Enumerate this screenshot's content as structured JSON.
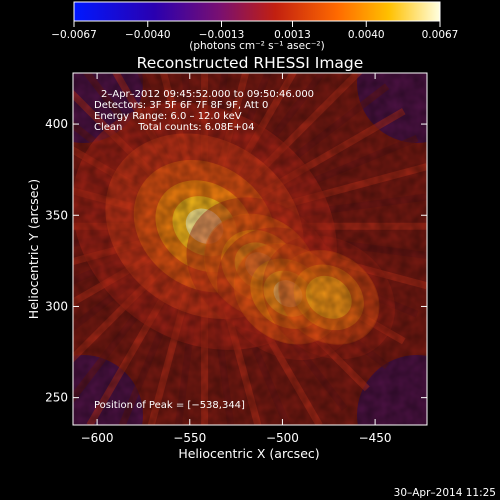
{
  "chart_data": {
    "type": "heatmap",
    "title": "Reconstructed RHESSI Image",
    "xlabel": "Heliocentric X (arcsec)",
    "ylabel": "Heliocentric Y (arcsec)",
    "xlim": [
      -613,
      -422
    ],
    "ylim": [
      235,
      428
    ],
    "x_ticks": [
      -600,
      -550,
      -500,
      -450
    ],
    "x_tick_labels": [
      "−600",
      "−550",
      "−500",
      "−450"
    ],
    "y_ticks": [
      250,
      300,
      350,
      400
    ],
    "y_tick_labels": [
      "250",
      "300",
      "350",
      "400"
    ],
    "colorbar": {
      "min": -0.0067,
      "max": 0.0067,
      "ticks": [
        -0.0067,
        -0.004,
        -0.0013,
        0.0013,
        0.004,
        0.0067
      ],
      "tick_labels": [
        "−0.0067",
        "−0.0040",
        "−0.0013",
        "0.0013",
        "0.0040",
        "0.0067"
      ],
      "unit_label": "(photons cm⁻² s⁻¹ asec⁻²)"
    },
    "annotations": {
      "time": "2–Apr–2012 09:45:52.000 to 09:50:46.000",
      "detectors": "Detectors: 3F 5F 6F 7F 8F 9F, Att 0",
      "energy": "Energy Range: 6.0 – 12.0 keV",
      "clean": "Clean     Total counts: 6.08E+04",
      "peak": "Position of Peak = [−538,344]"
    },
    "sources": [
      {
        "x": -542,
        "y": 344,
        "intensity": 1.0
      },
      {
        "x": -512,
        "y": 322,
        "intensity": 0.82
      },
      {
        "x": -497,
        "y": 307,
        "intensity": 0.72
      },
      {
        "x": -475,
        "y": 305,
        "intensity": 0.55
      }
    ],
    "footer_date": "30–Apr–2014 11:25"
  }
}
